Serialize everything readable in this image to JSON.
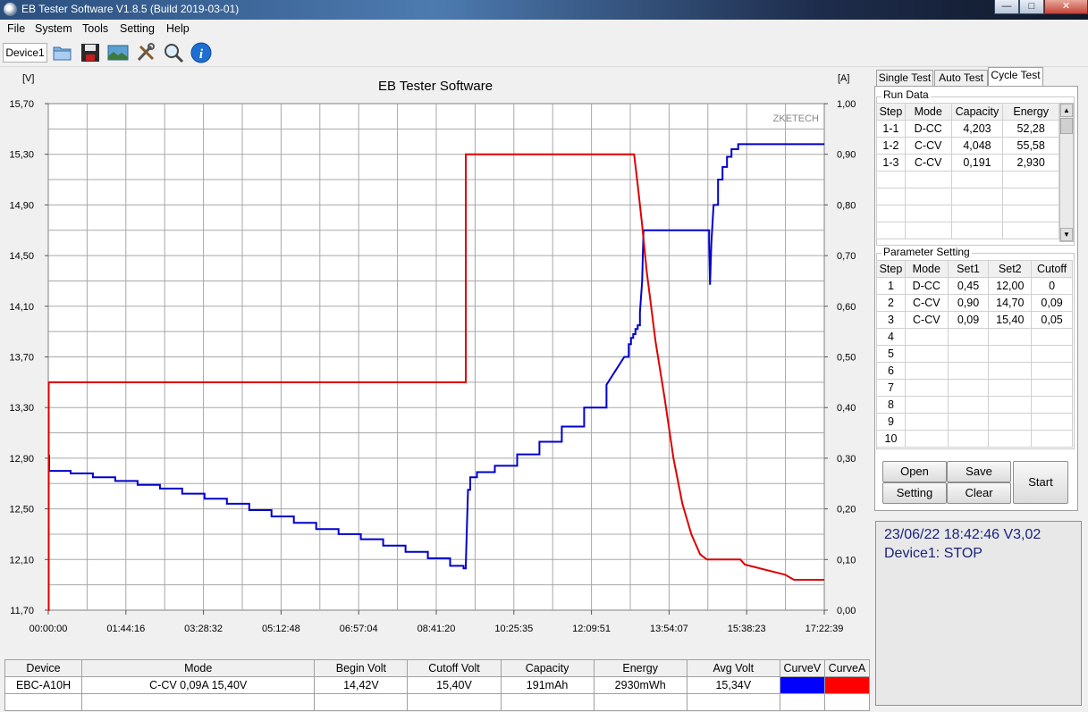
{
  "window": {
    "title": "EB Tester Software V1.8.5 (Build 2019-03-01)",
    "min": "—",
    "max": "□",
    "close": "✕"
  },
  "menu": [
    "File",
    "System",
    "Tools",
    "Setting",
    "Help"
  ],
  "toolbar": {
    "device_tab": "Device1",
    "icons": [
      "open-folder-icon",
      "save-disk-icon",
      "image-icon",
      "tools-icon",
      "magnifier-icon",
      "info-icon"
    ]
  },
  "chart_data": {
    "type": "line",
    "title": "EB Tester Software",
    "watermark": "ZKETECH",
    "y_left_unit": "[V]",
    "y_right_unit": "[A]",
    "y_left_ticks": [
      "15,70",
      "15,30",
      "14,90",
      "14,50",
      "14,10",
      "13,70",
      "13,30",
      "12,90",
      "12,50",
      "12,10",
      "11,70"
    ],
    "y_right_ticks": [
      "1,00",
      "0,90",
      "0,80",
      "0,70",
      "0,60",
      "0,50",
      "0,40",
      "0,30",
      "0,20",
      "0,10",
      "0,00"
    ],
    "x_ticks": [
      "00:00:00",
      "01:44:16",
      "03:28:32",
      "05:12:48",
      "06:57:04",
      "08:41:20",
      "10:25:35",
      "12:09:51",
      "13:54:07",
      "15:38:23",
      "17:22:39"
    ],
    "ylim_left": [
      11.7,
      15.7
    ],
    "ylim_right": [
      0.0,
      1.0
    ],
    "xlim_hours": [
      0,
      17.378
    ],
    "grid": true,
    "series": [
      {
        "axis": "left",
        "color": "#0000cc",
        "points": [
          [
            0,
            12.92
          ],
          [
            0.02,
            12.8
          ],
          [
            0.5,
            12.78
          ],
          [
            1.0,
            12.75
          ],
          [
            1.5,
            12.72
          ],
          [
            2.0,
            12.69
          ],
          [
            2.5,
            12.66
          ],
          [
            3.0,
            12.62
          ],
          [
            3.5,
            12.58
          ],
          [
            4.0,
            12.54
          ],
          [
            4.5,
            12.49
          ],
          [
            5.0,
            12.44
          ],
          [
            5.5,
            12.39
          ],
          [
            6.0,
            12.34
          ],
          [
            6.5,
            12.3
          ],
          [
            7.0,
            12.26
          ],
          [
            7.5,
            12.21
          ],
          [
            8.0,
            12.16
          ],
          [
            8.5,
            12.11
          ],
          [
            9.0,
            12.05
          ],
          [
            9.3,
            12.03
          ],
          [
            9.35,
            12.05
          ],
          [
            9.4,
            12.65
          ],
          [
            9.45,
            12.75
          ],
          [
            9.6,
            12.79
          ],
          [
            10.0,
            12.84
          ],
          [
            10.5,
            12.93
          ],
          [
            11.0,
            13.03
          ],
          [
            11.5,
            13.15
          ],
          [
            12.0,
            13.3
          ],
          [
            12.5,
            13.48
          ],
          [
            12.9,
            13.7
          ],
          [
            13.2,
            13.95
          ],
          [
            13.0,
            13.8
          ],
          [
            13.05,
            13.85
          ],
          [
            13.1,
            13.88
          ],
          [
            13.15,
            13.92
          ],
          [
            13.2,
            13.95
          ],
          [
            13.25,
            14.05
          ],
          [
            13.3,
            14.3
          ],
          [
            13.33,
            14.7
          ],
          [
            14.8,
            14.7
          ],
          [
            14.8,
            14.6
          ],
          [
            14.82,
            14.27
          ],
          [
            14.85,
            14.6
          ],
          [
            14.9,
            14.9
          ],
          [
            15.0,
            15.1
          ],
          [
            15.1,
            15.2
          ],
          [
            15.2,
            15.28
          ],
          [
            15.3,
            15.34
          ],
          [
            15.45,
            15.38
          ],
          [
            17.378,
            15.38
          ]
        ]
      },
      {
        "axis": "right",
        "color": "#dd0000",
        "points": [
          [
            0,
            0.0
          ],
          [
            0.01,
            0.0
          ],
          [
            0.01,
            0.45
          ],
          [
            9.35,
            0.45
          ],
          [
            9.35,
            0.9
          ],
          [
            13.12,
            0.9
          ],
          [
            13.2,
            0.84
          ],
          [
            13.3,
            0.76
          ],
          [
            13.4,
            0.67
          ],
          [
            13.6,
            0.53
          ],
          [
            13.8,
            0.42
          ],
          [
            14.0,
            0.3
          ],
          [
            14.2,
            0.21
          ],
          [
            14.4,
            0.15
          ],
          [
            14.6,
            0.11
          ],
          [
            14.75,
            0.1
          ],
          [
            15.5,
            0.1
          ],
          [
            15.6,
            0.09
          ],
          [
            16.5,
            0.07
          ],
          [
            16.7,
            0.06
          ],
          [
            17.378,
            0.06
          ]
        ]
      }
    ]
  },
  "status": {
    "headers": [
      "Device",
      "Mode",
      "Begin Volt",
      "Cutoff Volt",
      "Capacity",
      "Energy",
      "Avg Volt",
      "CurveV",
      "CurveA"
    ],
    "row": [
      "EBC-A10H",
      "C-CV  0,09A  15,40V",
      "14,42V",
      "15,40V",
      "191mAh",
      "2930mWh",
      "15,34V",
      "",
      ""
    ]
  },
  "tabs": [
    "Single Test",
    "Auto Test",
    "Cycle Test"
  ],
  "run_data": {
    "label": "Run Data",
    "headers": [
      "Step",
      "Mode",
      "Capacity",
      "Energy"
    ],
    "rows": [
      [
        "1-1",
        "D-CC",
        "4,203",
        "52,28"
      ],
      [
        "1-2",
        "C-CV",
        "4,048",
        "55,58"
      ],
      [
        "1-3",
        "C-CV",
        "0,191",
        "2,930"
      ],
      [
        "",
        "",
        "",
        ""
      ],
      [
        "",
        "",
        "",
        ""
      ],
      [
        "",
        "",
        "",
        ""
      ],
      [
        "",
        "",
        "",
        ""
      ]
    ]
  },
  "params": {
    "label": "Parameter Setting",
    "headers": [
      "Step",
      "Mode",
      "Set1",
      "Set2",
      "Cutoff"
    ],
    "rows": [
      [
        "1",
        "D-CC",
        "0,45",
        "12,00",
        "0"
      ],
      [
        "2",
        "C-CV",
        "0,90",
        "14,70",
        "0,09"
      ],
      [
        "3",
        "C-CV",
        "0,09",
        "15,40",
        "0,05"
      ],
      [
        "4",
        "",
        "",
        "",
        ""
      ],
      [
        "5",
        "",
        "",
        "",
        ""
      ],
      [
        "6",
        "",
        "",
        "",
        ""
      ],
      [
        "7",
        "",
        "",
        "",
        ""
      ],
      [
        "8",
        "",
        "",
        "",
        ""
      ],
      [
        "9",
        "",
        "",
        "",
        ""
      ],
      [
        "10",
        "",
        "",
        "",
        ""
      ]
    ]
  },
  "buttons": {
    "open": "Open",
    "save": "Save",
    "setting": "Setting",
    "clear": "Clear",
    "start": "Start"
  },
  "info": {
    "line1": "23/06/22 18:42:46  V3,02",
    "line2": "Device1: STOP"
  }
}
